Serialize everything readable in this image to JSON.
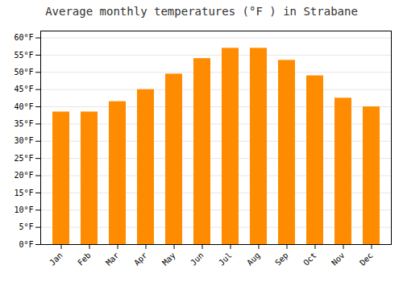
{
  "chart_data": {
    "type": "bar",
    "title": "Average monthly temperatures (°F ) in Strabane",
    "categories": [
      "Jan",
      "Feb",
      "Mar",
      "Apr",
      "May",
      "Jun",
      "Jul",
      "Aug",
      "Sep",
      "Oct",
      "Nov",
      "Dec"
    ],
    "values": [
      38.5,
      38.5,
      41.5,
      45.0,
      49.5,
      54.0,
      57.0,
      57.0,
      53.5,
      49.0,
      42.5,
      40.0
    ],
    "color": "#FF8C00",
    "ylim": [
      0,
      62
    ],
    "yticks": [
      {
        "value": 0,
        "label": "0°F"
      },
      {
        "value": 5,
        "label": "5°F"
      },
      {
        "value": 10,
        "label": "10°F"
      },
      {
        "value": 15,
        "label": "15°F"
      },
      {
        "value": 20,
        "label": "20°F"
      },
      {
        "value": 25,
        "label": "25°F"
      },
      {
        "value": 30,
        "label": "30°F"
      },
      {
        "value": 35,
        "label": "35°F"
      },
      {
        "value": 40,
        "label": "40°F"
      },
      {
        "value": 45,
        "label": "45°F"
      },
      {
        "value": 50,
        "label": "50°F"
      },
      {
        "value": 55,
        "label": "55°F"
      },
      {
        "value": 60,
        "label": "60°F"
      }
    ],
    "grid": true
  }
}
